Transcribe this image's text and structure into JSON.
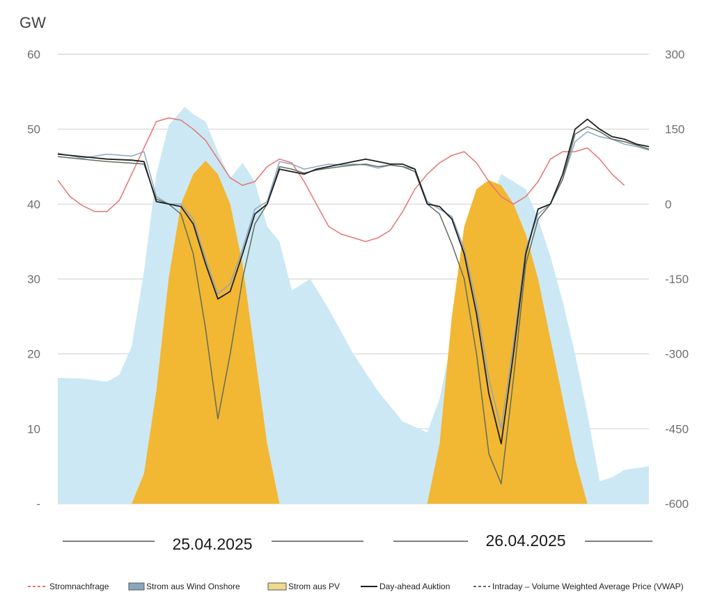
{
  "chart_data": {
    "type": "area",
    "title": "",
    "unit_left": "GW",
    "ylim_left": [
      0,
      60
    ],
    "yticks_left": [
      60,
      50,
      40,
      30,
      20,
      10,
      0
    ],
    "ytick_labels_left": [
      "60",
      "50",
      "40",
      "30",
      "20",
      "10",
      "-"
    ],
    "ylim_right": [
      -600,
      300
    ],
    "yticks_right": [
      300,
      150,
      0,
      -150,
      -300,
      -450,
      -600
    ],
    "ytick_labels_right": [
      "300",
      "150",
      "0",
      "-150",
      "-300",
      "-450",
      "-600"
    ],
    "x_range_hours": [
      0,
      48
    ],
    "grid": true,
    "legend_position": "bottom",
    "dates": [
      {
        "label": "25.04.2025",
        "start_hour": 0,
        "end_hour": 24
      },
      {
        "label": "26.04.2025",
        "start_hour": 24,
        "end_hour": 48
      }
    ],
    "series": [
      {
        "name": "Strom aus Wind Onshore",
        "axis": "left",
        "color": "#cce8f5",
        "legend_swatch": "#8aa6bf",
        "points": [
          [
            0,
            16.8
          ],
          [
            2,
            16.7
          ],
          [
            4,
            16.3
          ],
          [
            5,
            17.2
          ],
          [
            6,
            21
          ],
          [
            7,
            31
          ],
          [
            8,
            44
          ],
          [
            9,
            50.5
          ],
          [
            10.3,
            53
          ],
          [
            11,
            52
          ],
          [
            12,
            51
          ],
          [
            13,
            47
          ],
          [
            14,
            43.5
          ],
          [
            15,
            45.5
          ],
          [
            16,
            43
          ],
          [
            17,
            37
          ],
          [
            18,
            35
          ],
          [
            19,
            28.5
          ],
          [
            20.5,
            30
          ],
          [
            22,
            26
          ],
          [
            24,
            20
          ],
          [
            26,
            15
          ],
          [
            28,
            11
          ],
          [
            30,
            9.5
          ],
          [
            31,
            14
          ],
          [
            32,
            22
          ],
          [
            33,
            30
          ],
          [
            34,
            36
          ],
          [
            35,
            40
          ],
          [
            36,
            44
          ],
          [
            37,
            43
          ],
          [
            38,
            42
          ],
          [
            39,
            38
          ],
          [
            40,
            33
          ],
          [
            41,
            27
          ],
          [
            42,
            20
          ],
          [
            43,
            12
          ],
          [
            44,
            3
          ],
          [
            45,
            3.5
          ],
          [
            46,
            4.5
          ],
          [
            48,
            5
          ]
        ]
      },
      {
        "name": "Strom aus PV",
        "axis": "left",
        "color": "#f2b733",
        "legend_swatch": "#f0d98a",
        "points": [
          [
            6,
            0
          ],
          [
            7,
            4
          ],
          [
            8,
            15
          ],
          [
            9,
            30
          ],
          [
            10,
            40
          ],
          [
            11,
            44
          ],
          [
            12,
            45.8
          ],
          [
            13,
            44
          ],
          [
            14,
            40
          ],
          [
            15,
            32
          ],
          [
            16,
            20
          ],
          [
            17,
            8
          ],
          [
            18,
            0
          ],
          [
            30,
            0
          ],
          [
            31,
            8
          ],
          [
            32,
            25
          ],
          [
            33,
            37
          ],
          [
            34,
            42
          ],
          [
            35,
            43.2
          ],
          [
            36,
            42.5
          ],
          [
            37,
            40
          ],
          [
            38,
            36
          ],
          [
            39,
            30
          ],
          [
            40,
            22
          ],
          [
            41,
            14
          ],
          [
            42,
            6
          ],
          [
            43,
            0
          ]
        ]
      },
      {
        "name": "Stromnachfrage",
        "axis": "left",
        "color": "#e57373",
        "dashed_legend": true,
        "points": [
          [
            0,
            43.2
          ],
          [
            1,
            41
          ],
          [
            2,
            39.8
          ],
          [
            3,
            39
          ],
          [
            4,
            39
          ],
          [
            5,
            40.5
          ],
          [
            6,
            44
          ],
          [
            7,
            47.5
          ],
          [
            8,
            51
          ],
          [
            9,
            51.5
          ],
          [
            10,
            51.2
          ],
          [
            11,
            50
          ],
          [
            12,
            48.5
          ],
          [
            13,
            46
          ],
          [
            14,
            43.5
          ],
          [
            15,
            42.5
          ],
          [
            16,
            43
          ],
          [
            17,
            45
          ],
          [
            18,
            46
          ],
          [
            19,
            45.5
          ],
          [
            20,
            43
          ],
          [
            21,
            40
          ],
          [
            22,
            37
          ],
          [
            23,
            36
          ],
          [
            24,
            35.5
          ],
          [
            25,
            35
          ],
          [
            26,
            35.5
          ],
          [
            27,
            36.5
          ],
          [
            28,
            39
          ],
          [
            29,
            42
          ],
          [
            30,
            44
          ],
          [
            31,
            45.5
          ],
          [
            32,
            46.5
          ],
          [
            33,
            47
          ],
          [
            34,
            45.5
          ],
          [
            35,
            43
          ],
          [
            36,
            41
          ],
          [
            37,
            40
          ],
          [
            38,
            41
          ],
          [
            39,
            43
          ],
          [
            40,
            46
          ],
          [
            41,
            47
          ],
          [
            42,
            47
          ],
          [
            43,
            47.5
          ],
          [
            44,
            46
          ],
          [
            45,
            44
          ],
          [
            46,
            42.5
          ]
        ]
      },
      {
        "name": "Day-ahead Auktion",
        "axis": "right",
        "color": "#1e1e1e",
        "points": [
          [
            0,
            100
          ],
          [
            2,
            95
          ],
          [
            4,
            90
          ],
          [
            6,
            88
          ],
          [
            7,
            85
          ],
          [
            8,
            5
          ],
          [
            9,
            0
          ],
          [
            10,
            -5
          ],
          [
            11,
            -40
          ],
          [
            12,
            -120
          ],
          [
            13,
            -190
          ],
          [
            14,
            -175
          ],
          [
            15,
            -100
          ],
          [
            16,
            -20
          ],
          [
            17,
            0
          ],
          [
            18,
            70
          ],
          [
            19,
            65
          ],
          [
            20,
            60
          ],
          [
            21,
            70
          ],
          [
            22,
            75
          ],
          [
            23,
            80
          ],
          [
            24,
            85
          ],
          [
            25,
            90
          ],
          [
            26,
            85
          ],
          [
            27,
            80
          ],
          [
            28,
            80
          ],
          [
            29,
            70
          ],
          [
            30,
            0
          ],
          [
            31,
            -5
          ],
          [
            32,
            -30
          ],
          [
            33,
            -100
          ],
          [
            34,
            -220
          ],
          [
            35,
            -380
          ],
          [
            36,
            -480
          ],
          [
            37,
            -300
          ],
          [
            38,
            -100
          ],
          [
            39,
            -10
          ],
          [
            40,
            0
          ],
          [
            41,
            60
          ],
          [
            42,
            150
          ],
          [
            43,
            170
          ],
          [
            44,
            150
          ],
          [
            45,
            135
          ],
          [
            46,
            130
          ],
          [
            47,
            120
          ],
          [
            48,
            115
          ]
        ]
      },
      {
        "name": "Intraday – Volume Weighted Average Price (VWAP)",
        "axis": "right",
        "color": "#5e6e5a",
        "dashed_legend": true,
        "points": [
          [
            0,
            95
          ],
          [
            2,
            90
          ],
          [
            4,
            85
          ],
          [
            6,
            82
          ],
          [
            7,
            80
          ],
          [
            8,
            10
          ],
          [
            9,
            0
          ],
          [
            10,
            -20
          ],
          [
            11,
            -100
          ],
          [
            12,
            -250
          ],
          [
            13,
            -430
          ],
          [
            14,
            -300
          ],
          [
            15,
            -150
          ],
          [
            16,
            -40
          ],
          [
            17,
            0
          ],
          [
            18,
            75
          ],
          [
            19,
            70
          ],
          [
            20,
            62
          ],
          [
            21,
            68
          ],
          [
            22,
            72
          ],
          [
            23,
            75
          ],
          [
            24,
            78
          ],
          [
            25,
            80
          ],
          [
            26,
            75
          ],
          [
            27,
            78
          ],
          [
            28,
            75
          ],
          [
            29,
            65
          ],
          [
            30,
            0
          ],
          [
            31,
            -20
          ],
          [
            32,
            -80
          ],
          [
            33,
            -150
          ],
          [
            34,
            -300
          ],
          [
            35,
            -500
          ],
          [
            36,
            -560
          ],
          [
            37,
            -350
          ],
          [
            38,
            -120
          ],
          [
            39,
            -30
          ],
          [
            40,
            0
          ],
          [
            41,
            50
          ],
          [
            42,
            140
          ],
          [
            43,
            155
          ],
          [
            44,
            145
          ],
          [
            45,
            130
          ],
          [
            46,
            125
          ],
          [
            47,
            118
          ],
          [
            48,
            110
          ]
        ]
      },
      {
        "name": "Strom aus Wind Onshore (price)",
        "axis": "right",
        "color": "#8aa6bf",
        "legend": false,
        "points": [
          [
            0,
            102
          ],
          [
            2,
            92
          ],
          [
            4,
            100
          ],
          [
            6,
            96
          ],
          [
            7,
            105
          ],
          [
            8,
            15
          ],
          [
            9,
            0
          ],
          [
            10,
            0
          ],
          [
            11,
            -30
          ],
          [
            12,
            -110
          ],
          [
            13,
            -180
          ],
          [
            14,
            -160
          ],
          [
            15,
            -90
          ],
          [
            16,
            -10
          ],
          [
            17,
            5
          ],
          [
            18,
            85
          ],
          [
            19,
            80
          ],
          [
            20,
            70
          ],
          [
            21,
            75
          ],
          [
            22,
            80
          ],
          [
            23,
            78
          ],
          [
            24,
            80
          ],
          [
            25,
            78
          ],
          [
            26,
            72
          ],
          [
            27,
            78
          ],
          [
            28,
            75
          ],
          [
            29,
            70
          ],
          [
            30,
            5
          ],
          [
            31,
            -10
          ],
          [
            32,
            -25
          ],
          [
            33,
            -90
          ],
          [
            34,
            -200
          ],
          [
            35,
            -350
          ],
          [
            36,
            -450
          ],
          [
            37,
            -280
          ],
          [
            38,
            -90
          ],
          [
            39,
            -20
          ],
          [
            40,
            0
          ],
          [
            41,
            50
          ],
          [
            42,
            125
          ],
          [
            43,
            145
          ],
          [
            44,
            135
          ],
          [
            45,
            130
          ],
          [
            46,
            120
          ],
          [
            47,
            115
          ],
          [
            48,
            108
          ]
        ]
      }
    ]
  }
}
